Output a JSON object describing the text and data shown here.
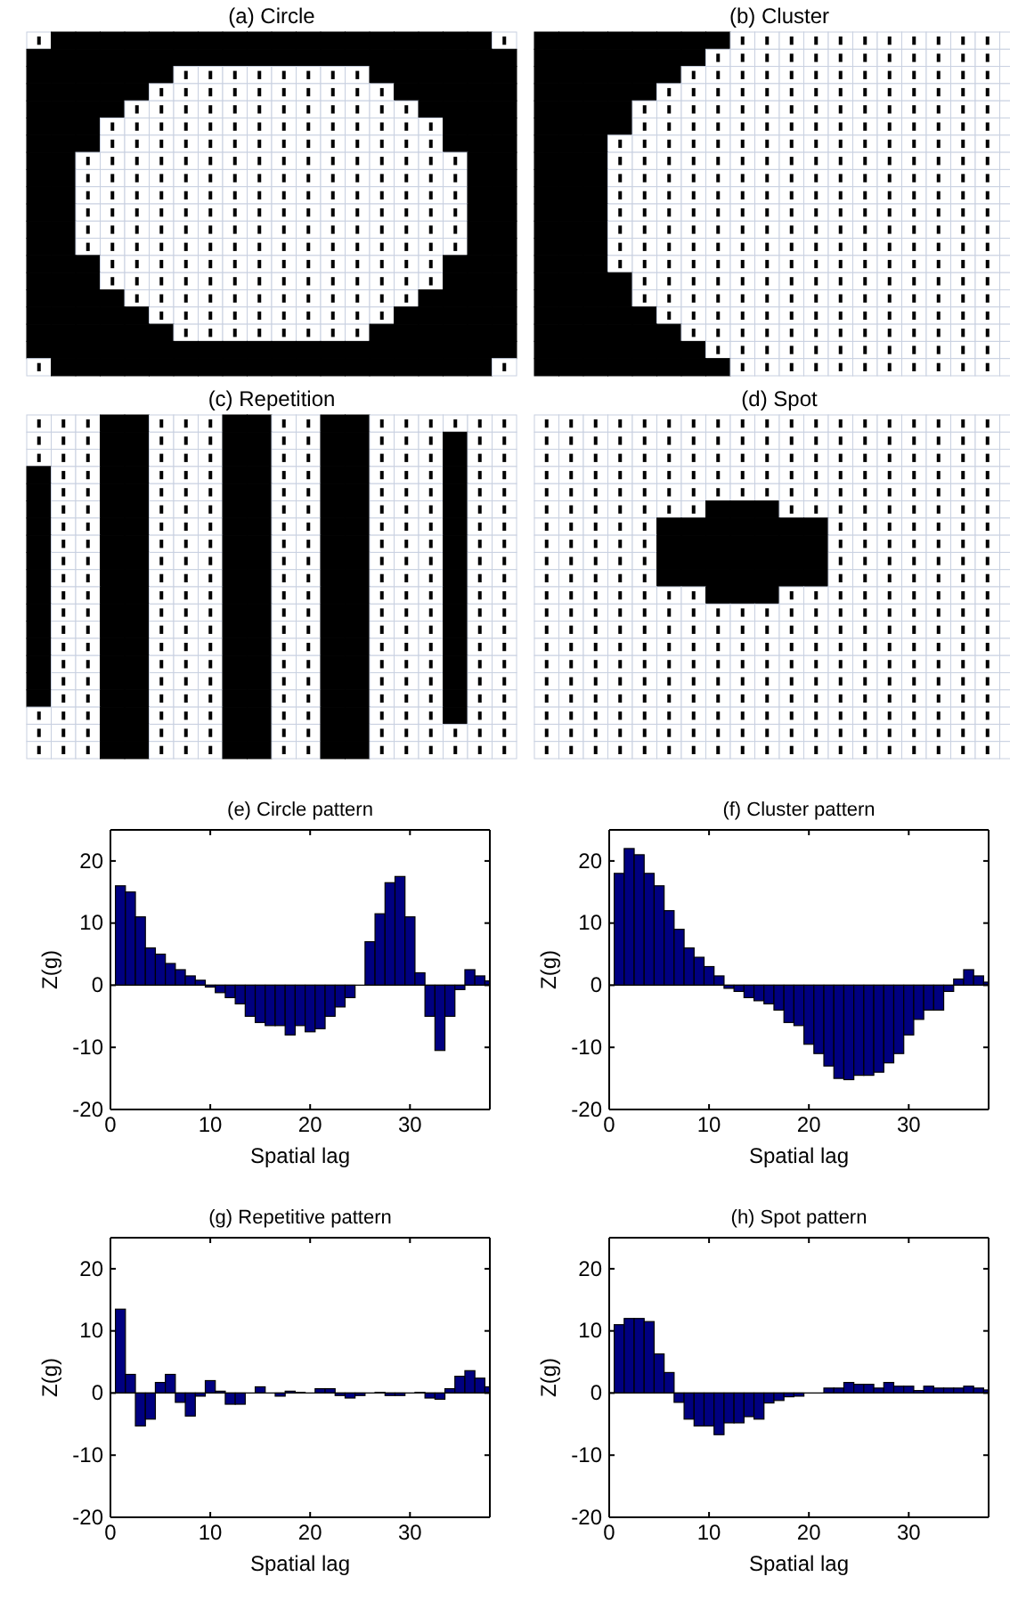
{
  "chart_data": [
    {
      "type": "other",
      "title": "(a) Circle"
    },
    {
      "type": "other",
      "title": "(b) Cluster"
    },
    {
      "type": "other",
      "title": "(c) Repetition"
    },
    {
      "type": "other",
      "title": "(d) Spot"
    },
    {
      "type": "bar",
      "title": "(e) Circle pattern",
      "xlabel": "Spatial lag",
      "ylabel": "Z(g)",
      "x": [
        1,
        2,
        3,
        4,
        5,
        6,
        7,
        8,
        9,
        10,
        11,
        12,
        13,
        14,
        15,
        16,
        17,
        18,
        19,
        20,
        21,
        22,
        23,
        24,
        25,
        26,
        27,
        28,
        29,
        30,
        31,
        32,
        33,
        34,
        35,
        36,
        37,
        38
      ],
      "values": [
        16,
        15,
        11,
        6,
        5,
        3.5,
        2.5,
        1.5,
        0.8,
        -0.3,
        -1.2,
        -2,
        -3,
        -5,
        -6,
        -6.5,
        -6.5,
        -8,
        -6.5,
        -7.5,
        -7,
        -5,
        -3.5,
        -2,
        0,
        7,
        11.5,
        16.5,
        17.5,
        11,
        2,
        -5,
        -10.5,
        -5,
        -0.7,
        2.5,
        1.5,
        0.7
      ],
      "color": "#000080",
      "xlim": [
        0,
        38
      ],
      "ylim": [
        -20,
        25
      ],
      "xticks": [
        0,
        10,
        20,
        30
      ],
      "yticks": [
        -20,
        -10,
        0,
        10,
        20
      ]
    },
    {
      "type": "bar",
      "title": "(f) Cluster pattern",
      "xlabel": "Spatial lag",
      "ylabel": "Z(g)",
      "x": [
        1,
        2,
        3,
        4,
        5,
        6,
        7,
        8,
        9,
        10,
        11,
        12,
        13,
        14,
        15,
        16,
        17,
        18,
        19,
        20,
        21,
        22,
        23,
        24,
        25,
        26,
        27,
        28,
        29,
        30,
        31,
        32,
        33,
        34,
        35,
        36,
        37,
        38
      ],
      "values": [
        18,
        22,
        21,
        18,
        16,
        12,
        9,
        6,
        4.5,
        3,
        1.5,
        -0.5,
        -1,
        -2,
        -2.5,
        -3,
        -4,
        -6,
        -6.5,
        -9.5,
        -11,
        -13,
        -15,
        -15.2,
        -14.5,
        -14.5,
        -14,
        -12.5,
        -11,
        -8,
        -5.5,
        -4,
        -4,
        -1,
        1,
        2.5,
        1.5,
        0.5
      ],
      "color": "#000080",
      "xlim": [
        0,
        38
      ],
      "ylim": [
        -20,
        25
      ],
      "xticks": [
        0,
        10,
        20,
        30
      ],
      "yticks": [
        -20,
        -10,
        0,
        10,
        20
      ]
    },
    {
      "type": "bar",
      "title": "(g) Repetitive pattern",
      "xlabel": "Spatial lag",
      "ylabel": "Z(g)",
      "x": [
        1,
        2,
        3,
        4,
        5,
        6,
        7,
        8,
        9,
        10,
        11,
        12,
        13,
        14,
        15,
        16,
        17,
        18,
        19,
        20,
        21,
        22,
        23,
        24,
        25,
        26,
        27,
        28,
        29,
        30,
        31,
        32,
        33,
        34,
        35,
        36,
        37,
        38
      ],
      "values": [
        13.5,
        3,
        -5.3,
        -4.2,
        1.7,
        3,
        -1.5,
        -3.7,
        -0.5,
        2,
        0.3,
        -1.8,
        -1.8,
        null,
        1,
        0,
        -0.5,
        0.3,
        0.1,
        0,
        0.7,
        0.7,
        -0.4,
        -0.8,
        -0.4,
        null,
        0.1,
        -0.4,
        -0.4,
        null,
        0.1,
        -0.8,
        -1,
        0.7,
        2.7,
        3.6,
        2.4,
        1
      ],
      "color": "#000080",
      "xlim": [
        0,
        38
      ],
      "ylim": [
        -20,
        25
      ],
      "xticks": [
        0,
        10,
        20,
        30
      ],
      "yticks": [
        -20,
        -10,
        0,
        10,
        20
      ]
    },
    {
      "type": "bar",
      "title": "(h) Spot pattern",
      "xlabel": "Spatial lag",
      "ylabel": "Z(g)",
      "x": [
        1,
        2,
        3,
        4,
        5,
        6,
        7,
        8,
        9,
        10,
        11,
        12,
        13,
        14,
        15,
        16,
        17,
        18,
        19,
        20,
        21,
        22,
        23,
        24,
        25,
        26,
        27,
        28,
        29,
        30,
        31,
        32,
        33,
        34,
        35,
        36,
        37,
        38
      ],
      "values": [
        11,
        12,
        12,
        11.5,
        6.3,
        3.3,
        -1.5,
        -4.2,
        -5.3,
        -5.3,
        -6.7,
        -4.8,
        -4.8,
        -3.8,
        -4.2,
        -1.6,
        -1.2,
        -0.6,
        -0.5,
        null,
        null,
        0.8,
        0.8,
        1.7,
        1.4,
        1.4,
        0.8,
        1.7,
        1.1,
        1.1,
        0.4,
        1.1,
        0.8,
        0.8,
        0.8,
        1.1,
        0.8,
        0.5
      ],
      "color": "#000080",
      "xlim": [
        0,
        38
      ],
      "ylim": [
        -20,
        25
      ],
      "xticks": [
        0,
        10,
        20,
        30
      ],
      "yticks": [
        -20,
        -10,
        0,
        10,
        20
      ]
    }
  ]
}
